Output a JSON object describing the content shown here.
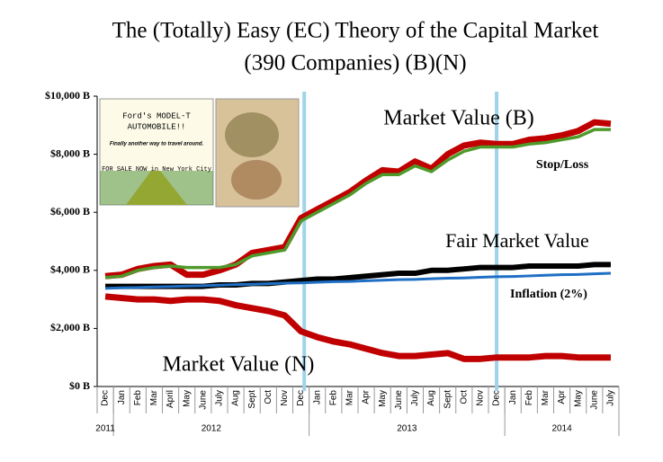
{
  "chart_data": {
    "type": "line",
    "title": "The (Totally) Easy (EC) Theory of the Capital Market",
    "subtitle": "(390 Companies) (B)(N)",
    "categories": [
      "Dec",
      "Jan",
      "Feb",
      "Mar",
      "April",
      "May",
      "June",
      "July",
      "Aug",
      "Sept",
      "Oct",
      "Nov",
      "Dec",
      "Jan",
      "Feb",
      "Mar",
      "Apr",
      "May",
      "June",
      "July",
      "Aug",
      "Sept",
      "Oct",
      "Nov",
      "Dec",
      "Jan",
      "Feb",
      "Mar",
      "Apr",
      "May",
      "June",
      "July"
    ],
    "year_groups": [
      {
        "label": "2011",
        "start": 0,
        "end": 0
      },
      {
        "label": "2012",
        "start": 1,
        "end": 12
      },
      {
        "label": "2013",
        "start": 13,
        "end": 24
      },
      {
        "label": "2014",
        "start": 25,
        "end": 31
      }
    ],
    "ylim": [
      0,
      10000
    ],
    "yticks": [
      {
        "value": 0,
        "label": "$0 B"
      },
      {
        "value": 2000,
        "label": "$2,000 B"
      },
      {
        "value": 4000,
        "label": "$4,000 B"
      },
      {
        "value": 6000,
        "label": "$6,000 B"
      },
      {
        "value": 8000,
        "label": "$8,000 B"
      },
      {
        "value": 10000,
        "label": "$10,000 B"
      }
    ],
    "series": [
      {
        "name": "Market Value (B)",
        "color": "#c00000",
        "values": [
          3800,
          3850,
          4050,
          4150,
          4200,
          3850,
          3850,
          4000,
          4200,
          4600,
          4700,
          4800,
          5800,
          6100,
          6400,
          6700,
          7100,
          7450,
          7400,
          7750,
          7500,
          8000,
          8300,
          8400,
          8350,
          8350,
          8500,
          8550,
          8650,
          8800,
          9100,
          9050
        ]
      },
      {
        "name": "Stop/Loss",
        "color": "#4e9a2a",
        "values": [
          3750,
          3800,
          4000,
          4100,
          4150,
          4100,
          4100,
          4100,
          4200,
          4500,
          4600,
          4700,
          5700,
          6000,
          6300,
          6600,
          7000,
          7300,
          7300,
          7600,
          7400,
          7800,
          8100,
          8250,
          8250,
          8250,
          8350,
          8400,
          8500,
          8600,
          8850,
          8850
        ]
      },
      {
        "name": "Fair Market Value",
        "color": "#000000",
        "values": [
          3450,
          3450,
          3450,
          3450,
          3450,
          3450,
          3450,
          3500,
          3500,
          3550,
          3550,
          3600,
          3650,
          3700,
          3700,
          3750,
          3800,
          3850,
          3900,
          3900,
          4000,
          4000,
          4050,
          4100,
          4100,
          4100,
          4150,
          4150,
          4150,
          4150,
          4200,
          4200
        ]
      },
      {
        "name": "Inflation (2%)",
        "color": "#1f6fc4",
        "values": [
          3380,
          3400,
          3410,
          3430,
          3440,
          3460,
          3470,
          3490,
          3510,
          3520,
          3540,
          3560,
          3570,
          3590,
          3610,
          3620,
          3640,
          3660,
          3680,
          3690,
          3710,
          3730,
          3740,
          3760,
          3780,
          3790,
          3810,
          3830,
          3850,
          3860,
          3880,
          3900
        ]
      },
      {
        "name": "Market Value (N)",
        "color": "#c00000",
        "values": [
          3100,
          3050,
          3000,
          3000,
          2950,
          3000,
          3000,
          2950,
          2800,
          2700,
          2600,
          2450,
          1900,
          1700,
          1550,
          1450,
          1300,
          1150,
          1050,
          1050,
          1100,
          1150,
          950,
          950,
          1000,
          1000,
          1000,
          1050,
          1050,
          1000,
          1000,
          1000
        ]
      }
    ],
    "ad_text": [
      "Ford's MODEL-T",
      "AUTOMOBILE!!",
      "Finally another way to travel around.",
      "FOR SALE NOW in New York City"
    ]
  }
}
